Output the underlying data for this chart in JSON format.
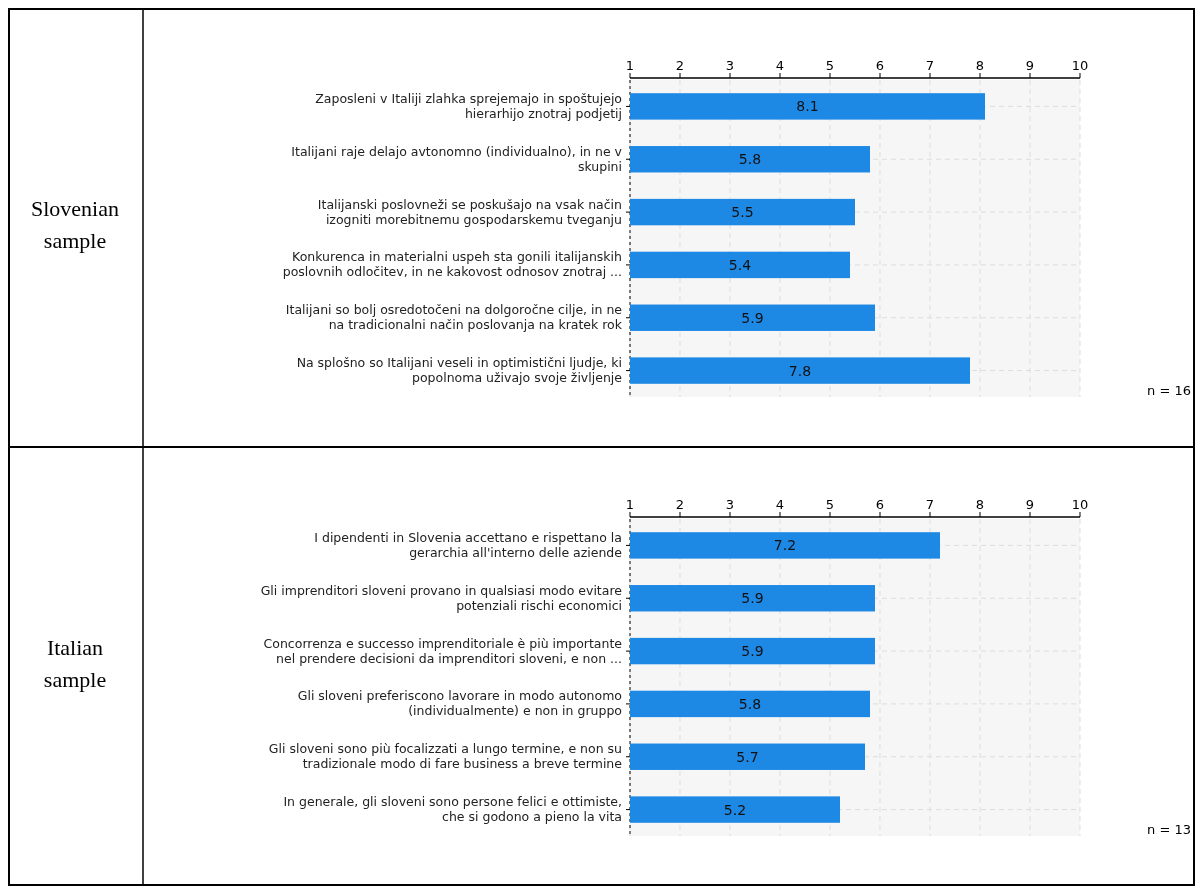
{
  "chart_data": [
    {
      "type": "bar",
      "orientation": "horizontal",
      "ylabel": "Slovenian sample",
      "categories": [
        "Zaposleni v Italiji zlahka sprejemajo in spoštujejo\nhierarhijo znotraj podjetij",
        "Italijani raje delajo avtonomno (individualno), in ne v\nskupini",
        "Italijanski poslovneži se poskušajo na vsak način\nizogniti morebitnemu gospodarskemu tveganju",
        "Konkurenca in materialni uspeh sta gonili italijanskih\nposlovnih odločitev, in ne kakovost odnosov znotraj ...",
        "Italijani so bolj osredotočeni na dolgoročne cilje, in ne\nna tradicionalni način poslovanja na kratek rok",
        "Na splošno so Italijani veseli in optimistični ljudje, ki\npopolnoma uživajo svoje življenje"
      ],
      "values": [
        8.1,
        5.8,
        5.5,
        5.4,
        5.9,
        7.8
      ],
      "color": "#1e88e5",
      "xlim": [
        1,
        10
      ],
      "xticks": [
        1,
        2,
        3,
        4,
        5,
        6,
        7,
        8,
        9,
        10
      ],
      "grid": true,
      "data_labels": true,
      "annotations": [
        "n = 16"
      ]
    },
    {
      "type": "bar",
      "orientation": "horizontal",
      "ylabel": "Italian sample",
      "categories": [
        "I dipendenti in Slovenia accettano e rispettano la\ngerarchia all'interno delle aziende",
        "Gli imprenditori sloveni provano in qualsiasi modo evitare\npotenziali rischi economici",
        "Concorrenza e successo imprenditoriale è più importante\nnel prendere decisioni da imprenditori sloveni, e non ...",
        "Gli sloveni preferiscono lavorare in modo autonomo\n(individualmente) e non in gruppo",
        "Gli sloveni sono più focalizzati a lungo termine, e non su\ntradizionale modo di fare business a breve termine",
        "In generale, gli sloveni sono persone felici e ottimiste,\nche si godono a pieno la vita"
      ],
      "values": [
        7.2,
        5.9,
        5.9,
        5.8,
        5.7,
        5.2
      ],
      "color": "#1e88e5",
      "xlim": [
        1,
        10
      ],
      "xticks": [
        1,
        2,
        3,
        4,
        5,
        6,
        7,
        8,
        9,
        10
      ],
      "grid": true,
      "data_labels": true,
      "annotations": [
        "n = 13"
      ]
    }
  ]
}
